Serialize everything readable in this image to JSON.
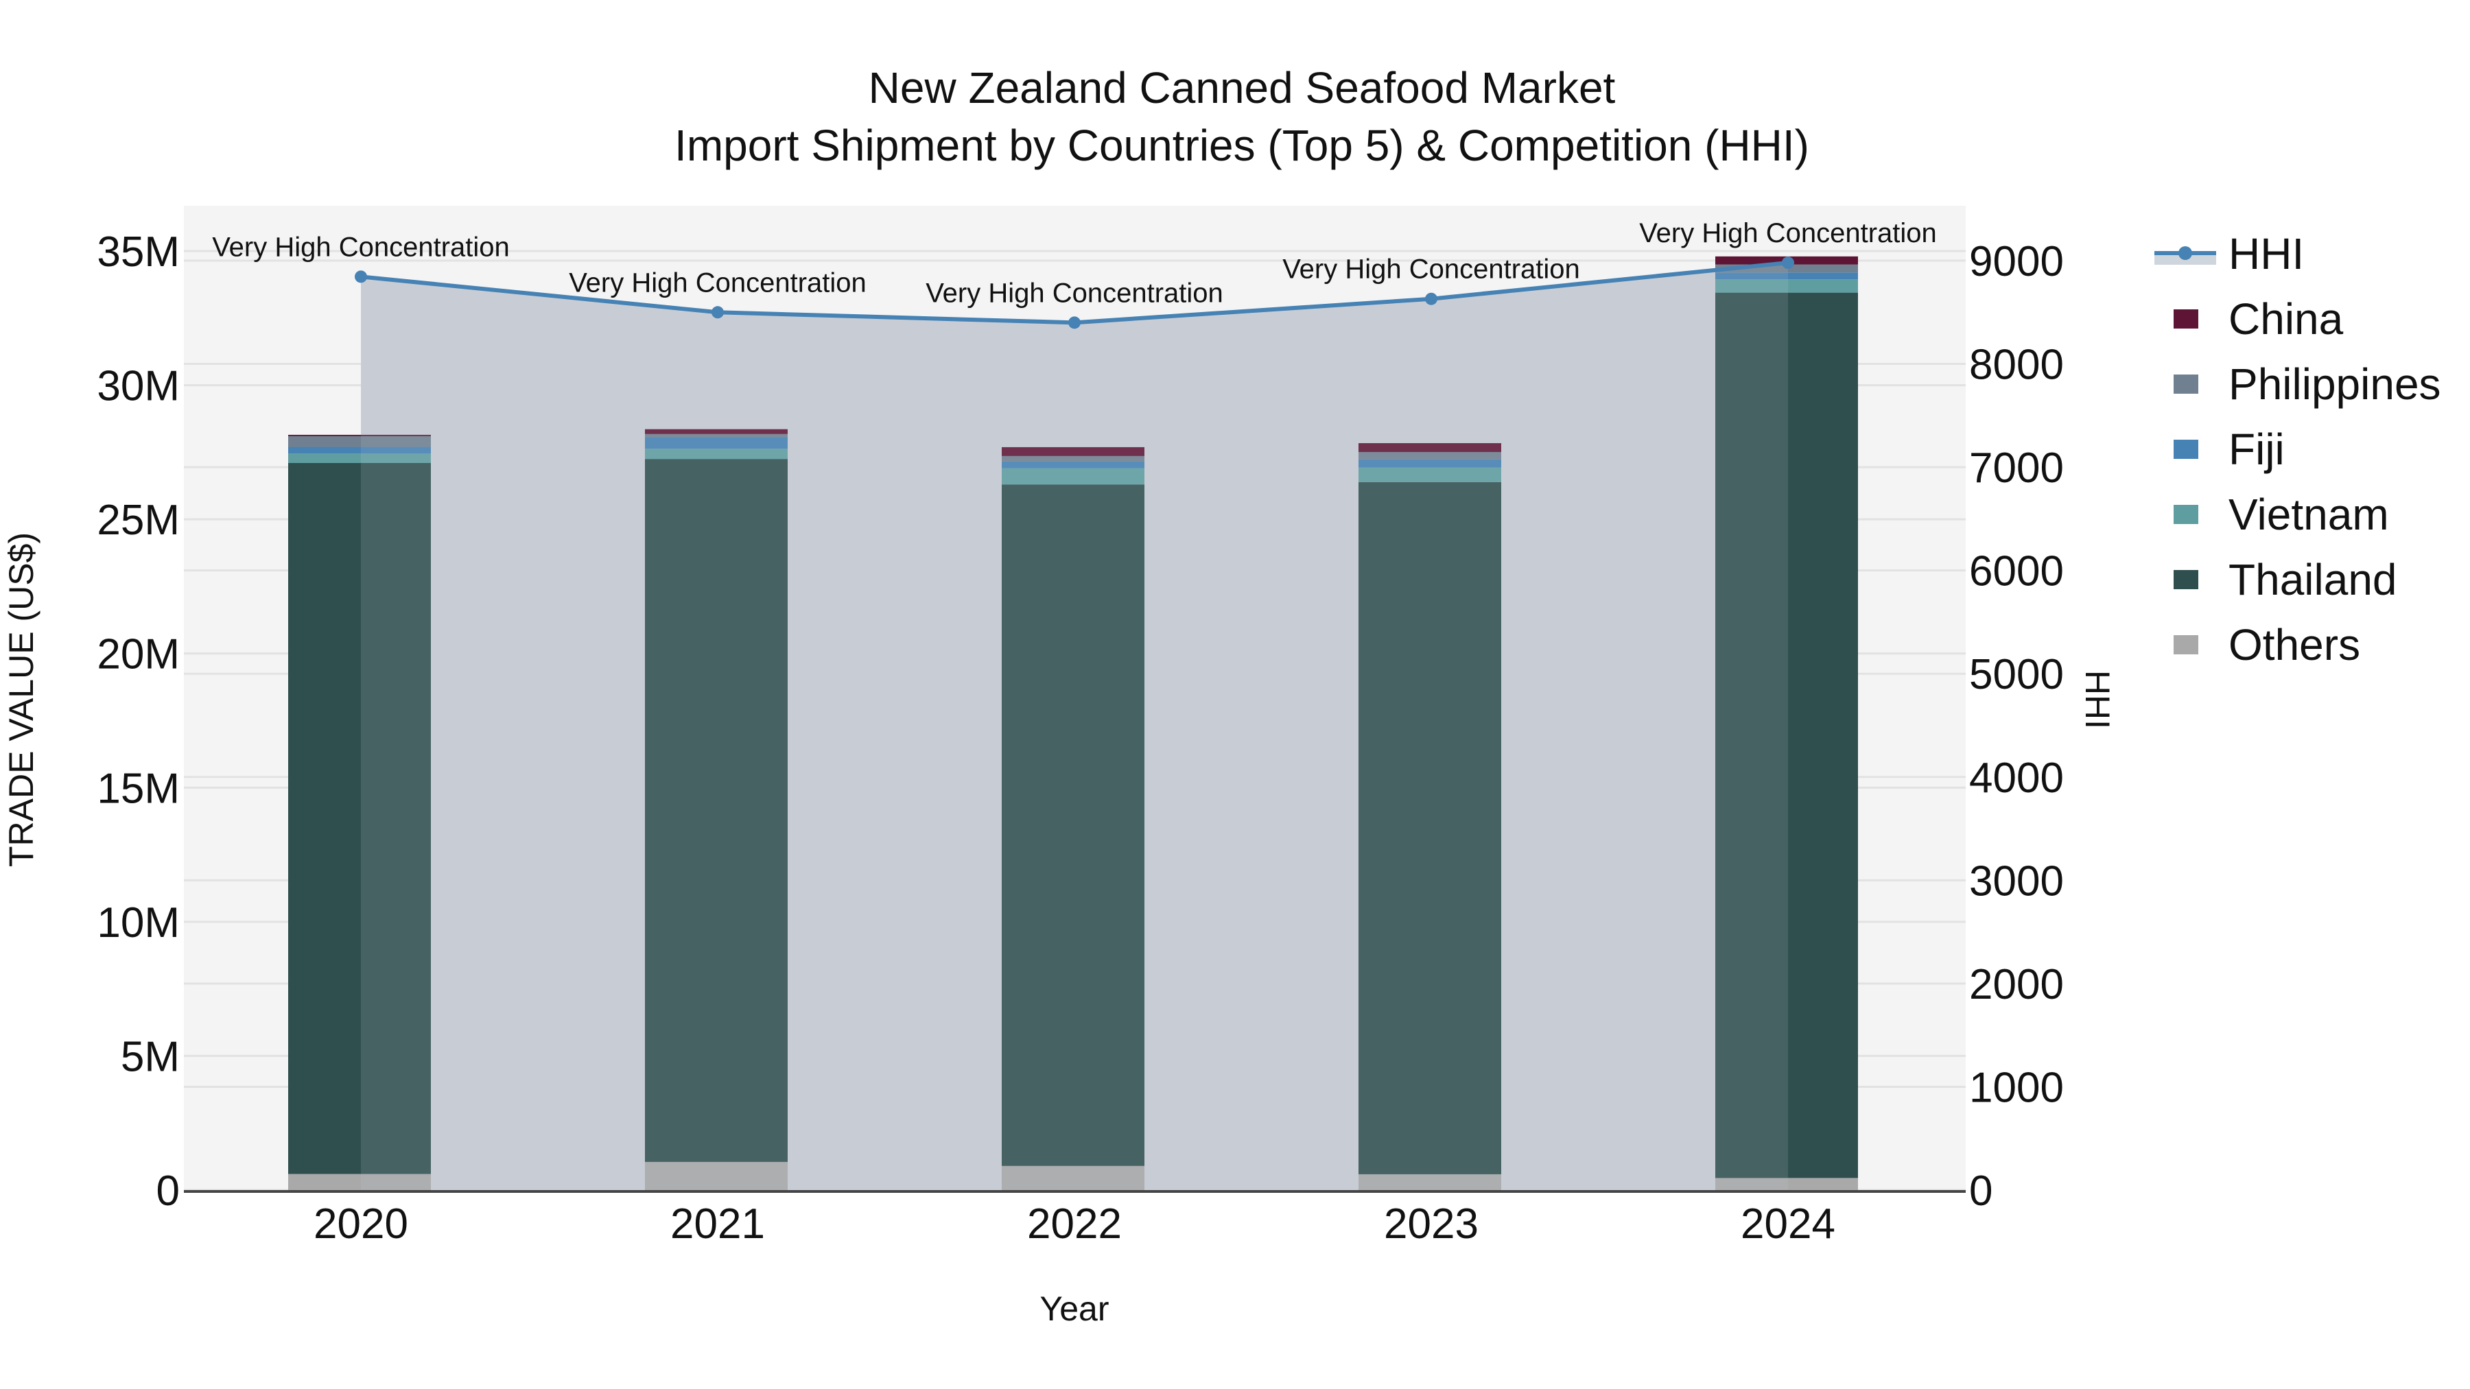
{
  "title": {
    "line1": "New Zealand Canned Seafood Market",
    "line2": "Import Shipment by Countries (Top 5) & Competition (HHI)"
  },
  "axes": {
    "x_label": "Year",
    "y_left_label": "TRADE VALUE (US$)",
    "y_right_label": "HHI",
    "y_left_ticks": [
      "0",
      "5M",
      "10M",
      "15M",
      "20M",
      "25M",
      "30M",
      "35M"
    ],
    "y_right_ticks": [
      "0",
      "1000",
      "2000",
      "3000",
      "4000",
      "5000",
      "6000",
      "7000",
      "8000",
      "9000"
    ],
    "x_ticks": [
      "2020",
      "2021",
      "2022",
      "2023",
      "2024"
    ]
  },
  "legend": [
    {
      "label": "HHI",
      "type": "line",
      "color": "#4682b4"
    },
    {
      "label": "China",
      "type": "bar",
      "color": "#5e1435"
    },
    {
      "label": "Philippines",
      "type": "bar",
      "color": "#708090"
    },
    {
      "label": "Fiji",
      "type": "bar",
      "color": "#4682b4"
    },
    {
      "label": "Vietnam",
      "type": "bar",
      "color": "#5f9ea0"
    },
    {
      "label": "Thailand",
      "type": "bar",
      "color": "#2f4f4f"
    },
    {
      "label": "Others",
      "type": "bar",
      "color": "#a9a9a9"
    }
  ],
  "annotations": [
    "Very High Concentration",
    "Very High Concentration",
    "Very High Concentration",
    "Very High Concentration",
    "Very High Concentration"
  ],
  "chart_data": {
    "type": "bar",
    "stacked": true,
    "title": "New Zealand Canned Seafood Market — Import Shipment by Countries (Top 5) & Competition (HHI)",
    "xlabel": "Year",
    "ylabel": "TRADE VALUE (US$)",
    "y2label": "HHI",
    "categories": [
      "2020",
      "2021",
      "2022",
      "2023",
      "2024"
    ],
    "ylim": [
      0,
      36500000
    ],
    "y2lim": [
      0,
      9400
    ],
    "grid": true,
    "legend_position": "right",
    "series": [
      {
        "name": "Others",
        "color": "#a9a9a9",
        "values": [
          600000,
          1050000,
          900000,
          590000,
          450000
        ]
      },
      {
        "name": "Thailand",
        "color": "#2f4f4f",
        "values": [
          26500000,
          26200000,
          25400000,
          25800000,
          33000000
        ]
      },
      {
        "name": "Vietnam",
        "color": "#5f9ea0",
        "values": [
          350000,
          380000,
          600000,
          540000,
          500000
        ]
      },
      {
        "name": "Fiji",
        "color": "#4682b4",
        "values": [
          250000,
          430000,
          260000,
          300000,
          250000
        ]
      },
      {
        "name": "Philippines",
        "color": "#708090",
        "values": [
          400000,
          120000,
          200000,
          280000,
          300000
        ]
      },
      {
        "name": "China",
        "color": "#5e1435",
        "values": [
          50000,
          180000,
          330000,
          330000,
          300000
        ]
      }
    ],
    "line_series": {
      "name": "HHI",
      "axis": "right",
      "color": "#4682b4",
      "fill": "tozeroy",
      "values": [
        8845,
        8500,
        8400,
        8630,
        8980
      ],
      "labels": [
        "Very High Concentration",
        "Very High Concentration",
        "Very High Concentration",
        "Very High Concentration",
        "Very High Concentration"
      ]
    }
  }
}
